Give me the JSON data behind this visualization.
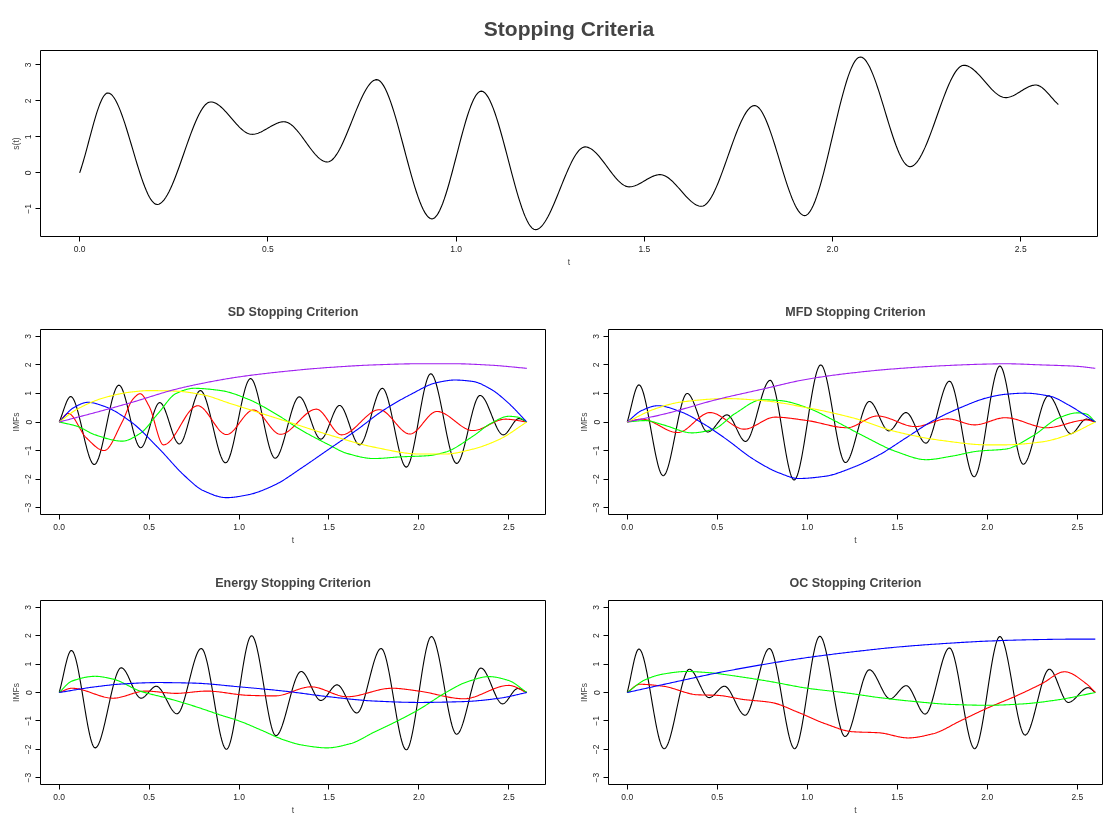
{
  "chart_data": [
    {
      "type": "line",
      "title": "Stopping Criteria",
      "xlabel": "t",
      "ylabel": "s(t)",
      "xlim": [
        -0.104,
        2.704
      ],
      "ylim": [
        -1.77,
        3.4
      ],
      "xticks": [
        {
          "value": 0,
          "label": "0.0"
        },
        0.5,
        {
          "value": 1,
          "label": "1.0"
        },
        1.5,
        {
          "value": 2,
          "label": "2.0"
        },
        2.5
      ],
      "yticks": [
        -1,
        0,
        1,
        2,
        3
      ],
      "series": [
        {
          "color": "#000000",
          "x": [
            0,
            0.075,
            0.206,
            0.348,
            0.458,
            0.543,
            0.658,
            0.789,
            0.936,
            1.067,
            1.211,
            1.343,
            1.46,
            1.542,
            1.652,
            1.793,
            1.926,
            2.074,
            2.206,
            2.349,
            2.46,
            2.54,
            2.6
          ],
          "values": [
            0,
            2.22,
            -0.88,
            1.97,
            1.07,
            1.42,
            0.3,
            2.59,
            -1.28,
            2.27,
            -1.58,
            0.72,
            -0.39,
            -0.05,
            -0.93,
            1.87,
            -1.19,
            3.22,
            0.17,
            2.99,
            2.09,
            2.44,
            1.9
          ]
        }
      ]
    },
    {
      "type": "line",
      "title": "SD Stopping Criterion",
      "xlabel": "t",
      "ylabel": "IMFs",
      "xlim": [
        -0.104,
        2.704
      ],
      "ylim": [
        -3.24,
        3.24
      ],
      "xticks": [
        {
          "value": 0,
          "label": "0.0"
        },
        0.5,
        {
          "value": 1,
          "label": "1.0"
        },
        1.5,
        {
          "value": 2,
          "label": "2.0"
        },
        2.5
      ],
      "yticks": [
        -3,
        -2,
        -1,
        0,
        1,
        2,
        3
      ],
      "series": [
        {
          "color": "#000000",
          "x": [
            0,
            0.064,
            0.195,
            0.332,
            0.453,
            0.559,
            0.668,
            0.785,
            0.925,
            1.064,
            1.201,
            1.335,
            1.455,
            1.559,
            1.67,
            1.797,
            1.93,
            2.066,
            2.21,
            2.34,
            2.469,
            2.556,
            2.6
          ],
          "values": [
            0,
            0.89,
            -1.49,
            1.29,
            -0.9,
            0.68,
            -0.77,
            1.1,
            -1.43,
            1.52,
            -1.27,
            0.88,
            -0.6,
            0.58,
            -0.8,
            1.18,
            -1.58,
            1.69,
            -1.45,
            0.93,
            -0.45,
            0.12,
            0
          ]
        },
        {
          "color": "#ff0000",
          "x": [
            0,
            0.05,
            0.15,
            0.25,
            0.35,
            0.41,
            0.45,
            0.5,
            0.58,
            0.77,
            0.93,
            1.08,
            1.23,
            1.43,
            1.57,
            1.78,
            1.95,
            2.1,
            2.3,
            2.48,
            2.6
          ],
          "values": [
            0,
            0.3,
            -0.55,
            -1.0,
            0.0,
            0.8,
            0.99,
            0.55,
            -0.8,
            0.57,
            -0.44,
            0.42,
            -0.43,
            0.45,
            -0.45,
            0.43,
            -0.42,
            0.37,
            -0.3,
            0.1,
            0
          ]
        },
        {
          "color": "#00ff00",
          "x": [
            0,
            0.1,
            0.2,
            0.35,
            0.45,
            0.55,
            0.65,
            0.75,
            0.9,
            1.05,
            1.2,
            1.35,
            1.5,
            1.6,
            1.75,
            1.9,
            2.05,
            2.15,
            2.3,
            2.4,
            2.5,
            2.55,
            2.6
          ],
          "values": [
            0,
            -0.15,
            -0.45,
            -0.67,
            -0.4,
            0.3,
            1.0,
            1.18,
            1.1,
            0.8,
            0.3,
            -0.3,
            -0.8,
            -1.1,
            -1.28,
            -1.22,
            -1.18,
            -1.05,
            -0.5,
            -0.05,
            0.2,
            0.17,
            0
          ]
        },
        {
          "color": "#0000ff",
          "x": [
            0,
            0.08,
            0.16,
            0.25,
            0.4,
            0.55,
            0.7,
            0.8,
            0.93,
            1.05,
            1.2,
            1.35,
            1.5,
            1.65,
            1.8,
            1.95,
            2.1,
            2.2,
            2.3,
            2.4,
            2.5,
            2.6
          ],
          "values": [
            0,
            0.5,
            0.69,
            0.55,
            0,
            -0.9,
            -1.9,
            -2.4,
            -2.65,
            -2.55,
            -2.2,
            -1.6,
            -0.95,
            -0.3,
            0.4,
            0.95,
            1.38,
            1.47,
            1.42,
            1.15,
            0.65,
            0
          ]
        },
        {
          "color": "#ffff00",
          "x": [
            0,
            0.1,
            0.25,
            0.4,
            0.5,
            0.65,
            0.8,
            0.95,
            1.1,
            1.3,
            1.5,
            1.75,
            2.0,
            2.15,
            2.3,
            2.45,
            2.6
          ],
          "values": [
            0,
            0.45,
            0.85,
            1.05,
            1.1,
            1.08,
            0.95,
            0.65,
            0.35,
            -0.05,
            -0.45,
            -0.88,
            -1.12,
            -1.12,
            -0.95,
            -0.6,
            0
          ]
        },
        {
          "color": "#a020f0",
          "x": [
            0,
            0.2,
            0.4,
            0.65,
            0.8,
            1.0,
            1.25,
            1.5,
            1.75,
            2.0,
            2.2,
            2.4,
            2.6
          ],
          "values": [
            0,
            0.33,
            0.68,
            1.15,
            1.36,
            1.58,
            1.77,
            1.91,
            2.0,
            2.04,
            2.04,
            1.99,
            1.88
          ]
        }
      ]
    },
    {
      "type": "line",
      "title": "MFD Stopping Criterion",
      "xlabel": "t",
      "ylabel": "IMFs",
      "xlim": [
        -0.104,
        2.64
      ],
      "ylim": [
        -3.24,
        3.24
      ],
      "xticks": [
        {
          "value": 0,
          "label": "0.0"
        },
        0.5,
        {
          "value": 1,
          "label": "1.0"
        },
        1.5,
        {
          "value": 2,
          "label": "2.0"
        },
        2.5
      ],
      "yticks": [
        -3,
        -2,
        -1,
        0,
        1,
        2,
        3
      ],
      "series": [
        {
          "color": "#000000",
          "x": [
            0,
            0.065,
            0.2,
            0.333,
            0.447,
            0.555,
            0.657,
            0.794,
            0.927,
            1.075,
            1.212,
            1.345,
            1.453,
            1.549,
            1.659,
            1.79,
            1.927,
            2.07,
            2.2,
            2.34,
            2.465,
            2.55,
            2.6
          ],
          "values": [
            0,
            1.3,
            -1.88,
            1.0,
            -0.35,
            0.25,
            -0.68,
            1.46,
            -2.03,
            2.0,
            -1.42,
            0.72,
            -0.31,
            0.33,
            -0.74,
            1.43,
            -1.92,
            1.96,
            -1.48,
            0.92,
            -0.41,
            0.1,
            0
          ]
        },
        {
          "color": "#ff0000",
          "x": [
            0,
            0.08,
            0.28,
            0.46,
            0.65,
            0.82,
            1.0,
            1.22,
            1.39,
            1.6,
            1.78,
            1.93,
            2.1,
            2.33,
            2.55,
            2.6
          ],
          "values": [
            0,
            0.1,
            -0.37,
            0.33,
            -0.25,
            0.17,
            0.05,
            -0.2,
            0.21,
            -0.16,
            0.11,
            -0.1,
            0.15,
            -0.2,
            0.07,
            0
          ]
        },
        {
          "color": "#00ff00",
          "x": [
            0,
            0.1,
            0.2,
            0.36,
            0.48,
            0.6,
            0.75,
            0.85,
            1.0,
            1.15,
            1.3,
            1.5,
            1.66,
            1.8,
            1.95,
            2.1,
            2.25,
            2.4,
            2.5,
            2.55,
            2.6
          ],
          "values": [
            0,
            0.05,
            -0.1,
            -0.38,
            -0.25,
            0.3,
            0.78,
            0.75,
            0.5,
            0.05,
            -0.45,
            -1.05,
            -1.32,
            -1.2,
            -1.02,
            -0.95,
            -0.5,
            0.15,
            0.32,
            0.28,
            0
          ]
        },
        {
          "color": "#0000ff",
          "x": [
            0,
            0.08,
            0.17,
            0.3,
            0.42,
            0.55,
            0.7,
            0.85,
            0.95,
            1.1,
            1.25,
            1.4,
            1.55,
            1.7,
            1.85,
            2.0,
            2.1,
            2.21,
            2.35,
            2.45,
            2.6
          ],
          "values": [
            0,
            0.4,
            0.57,
            0.35,
            -0.05,
            -0.6,
            -1.3,
            -1.8,
            -1.98,
            -1.9,
            -1.6,
            -1.15,
            -0.55,
            0.05,
            0.5,
            0.85,
            0.97,
            1.01,
            0.9,
            0.6,
            0
          ]
        },
        {
          "color": "#ffff00",
          "x": [
            0,
            0.15,
            0.3,
            0.55,
            0.75,
            1.0,
            1.25,
            1.5,
            1.75,
            2.0,
            2.1,
            2.3,
            2.45,
            2.6
          ],
          "values": [
            0,
            0.45,
            0.7,
            0.82,
            0.75,
            0.5,
            0.15,
            -0.35,
            -0.65,
            -0.8,
            -0.8,
            -0.7,
            -0.45,
            0
          ]
        },
        {
          "color": "#a020f0",
          "x": [
            0,
            0.2,
            0.5,
            0.75,
            1.0,
            1.25,
            1.5,
            1.75,
            2.0,
            2.1,
            2.3,
            2.5,
            2.6
          ],
          "values": [
            0,
            0.27,
            0.79,
            1.15,
            1.5,
            1.72,
            1.87,
            1.97,
            2.03,
            2.04,
            2.0,
            1.95,
            1.88
          ]
        }
      ]
    },
    {
      "type": "line",
      "title": "Energy Stopping Criterion",
      "xlabel": "t",
      "ylabel": "IMFs",
      "xlim": [
        -0.104,
        2.704
      ],
      "ylim": [
        -3.24,
        3.24
      ],
      "xticks": [
        {
          "value": 0,
          "label": "0.0"
        },
        0.5,
        {
          "value": 1,
          "label": "1.0"
        },
        1.5,
        {
          "value": 2,
          "label": "2.0"
        },
        2.5
      ],
      "yticks": [
        -3,
        -2,
        -1,
        0,
        1,
        2,
        3
      ],
      "series": [
        {
          "color": "#000000",
          "x": [
            0,
            0.068,
            0.2,
            0.345,
            0.455,
            0.54,
            0.655,
            0.79,
            0.93,
            1.07,
            1.205,
            1.345,
            1.455,
            1.545,
            1.655,
            1.79,
            1.93,
            2.07,
            2.21,
            2.345,
            2.465,
            2.55,
            2.6
          ],
          "values": [
            0,
            1.48,
            -1.95,
            0.87,
            -0.2,
            0.22,
            -0.75,
            1.55,
            -2.0,
            2.0,
            -1.52,
            0.74,
            -0.28,
            0.27,
            -0.72,
            1.55,
            -2.02,
            1.97,
            -1.47,
            0.86,
            -0.4,
            0.14,
            0
          ]
        },
        {
          "color": "#ff0000",
          "x": [
            0,
            0.07,
            0.3,
            0.48,
            0.65,
            0.82,
            1.05,
            1.2,
            1.4,
            1.6,
            1.85,
            2.0,
            2.25,
            2.5,
            2.6
          ],
          "values": [
            0,
            0.15,
            -0.2,
            0.05,
            -0.03,
            0.05,
            -0.1,
            -0.12,
            0.2,
            -0.15,
            0.15,
            0.05,
            -0.22,
            0.25,
            0
          ]
        },
        {
          "color": "#00ff00",
          "x": [
            0,
            0.07,
            0.2,
            0.3,
            0.45,
            0.6,
            0.75,
            0.9,
            1.0,
            1.125,
            1.25,
            1.35,
            1.49,
            1.62,
            1.75,
            1.875,
            2.0,
            2.15,
            2.27,
            2.39,
            2.5,
            2.6
          ],
          "values": [
            0,
            0.4,
            0.57,
            0.47,
            0.05,
            -0.2,
            -0.48,
            -0.8,
            -1.0,
            -1.33,
            -1.67,
            -1.85,
            -1.95,
            -1.8,
            -1.4,
            -1.02,
            -0.6,
            0,
            0.38,
            0.56,
            0.42,
            0
          ]
        },
        {
          "color": "#0000ff",
          "x": [
            0,
            0.2,
            0.35,
            0.55,
            0.75,
            1.0,
            1.25,
            1.5,
            1.75,
            2.0,
            2.25,
            2.45,
            2.6
          ],
          "values": [
            0,
            0.2,
            0.3,
            0.35,
            0.33,
            0.2,
            0.05,
            -0.15,
            -0.3,
            -0.35,
            -0.32,
            -0.2,
            0
          ]
        }
      ]
    },
    {
      "type": "line",
      "title": "OC Stopping Criterion",
      "xlabel": "t",
      "ylabel": "IMFs",
      "xlim": [
        -0.104,
        2.64
      ],
      "ylim": [
        -3.24,
        3.24
      ],
      "xticks": [
        {
          "value": 0,
          "label": "0.0"
        },
        0.5,
        {
          "value": 1,
          "label": "1.0"
        },
        1.5,
        {
          "value": 2,
          "label": "2.0"
        },
        2.5
      ],
      "yticks": [
        -3,
        -2,
        -1,
        0,
        1,
        2,
        3
      ],
      "series": [
        {
          "color": "#000000",
          "x": [
            0,
            0.065,
            0.205,
            0.345,
            0.455,
            0.54,
            0.655,
            0.79,
            0.93,
            1.07,
            1.21,
            1.345,
            1.46,
            1.55,
            1.655,
            1.79,
            1.93,
            2.07,
            2.21,
            2.345,
            2.45,
            2.56,
            2.6
          ],
          "values": [
            0,
            1.53,
            -1.98,
            0.82,
            -0.18,
            0.22,
            -0.8,
            1.55,
            -1.98,
            1.98,
            -1.55,
            0.8,
            -0.22,
            0.24,
            -0.76,
            1.57,
            -1.98,
            1.97,
            -1.5,
            0.82,
            -0.35,
            0.17,
            0
          ]
        },
        {
          "color": "#ff0000",
          "x": [
            0,
            0.07,
            0.2,
            0.39,
            0.5,
            0.65,
            0.8,
            0.95,
            1.1,
            1.25,
            1.4,
            1.56,
            1.7,
            1.85,
            2.0,
            2.15,
            2.3,
            2.43,
            2.55,
            2.6
          ],
          "values": [
            0,
            0.29,
            0.22,
            -0.08,
            -0.1,
            -0.25,
            -0.35,
            -0.7,
            -1.1,
            -1.38,
            -1.42,
            -1.6,
            -1.45,
            -1.0,
            -0.55,
            -0.15,
            0.3,
            0.73,
            0.31,
            0
          ]
        },
        {
          "color": "#00ff00",
          "x": [
            0,
            0.1,
            0.2,
            0.33,
            0.45,
            0.6,
            0.8,
            1.0,
            1.2,
            1.4,
            1.6,
            1.8,
            2.0,
            2.2,
            2.4,
            2.6
          ],
          "values": [
            0,
            0.45,
            0.65,
            0.74,
            0.7,
            0.58,
            0.38,
            0.15,
            0,
            -0.18,
            -0.32,
            -0.42,
            -0.45,
            -0.4,
            -0.25,
            0
          ]
        },
        {
          "color": "#0000ff",
          "x": [
            0,
            0.25,
            0.5,
            0.75,
            1.0,
            1.25,
            1.5,
            1.75,
            2.0,
            2.25,
            2.5,
            2.6
          ],
          "values": [
            0,
            0.35,
            0.69,
            0.98,
            1.23,
            1.43,
            1.6,
            1.72,
            1.81,
            1.86,
            1.88,
            1.88
          ]
        }
      ]
    }
  ]
}
